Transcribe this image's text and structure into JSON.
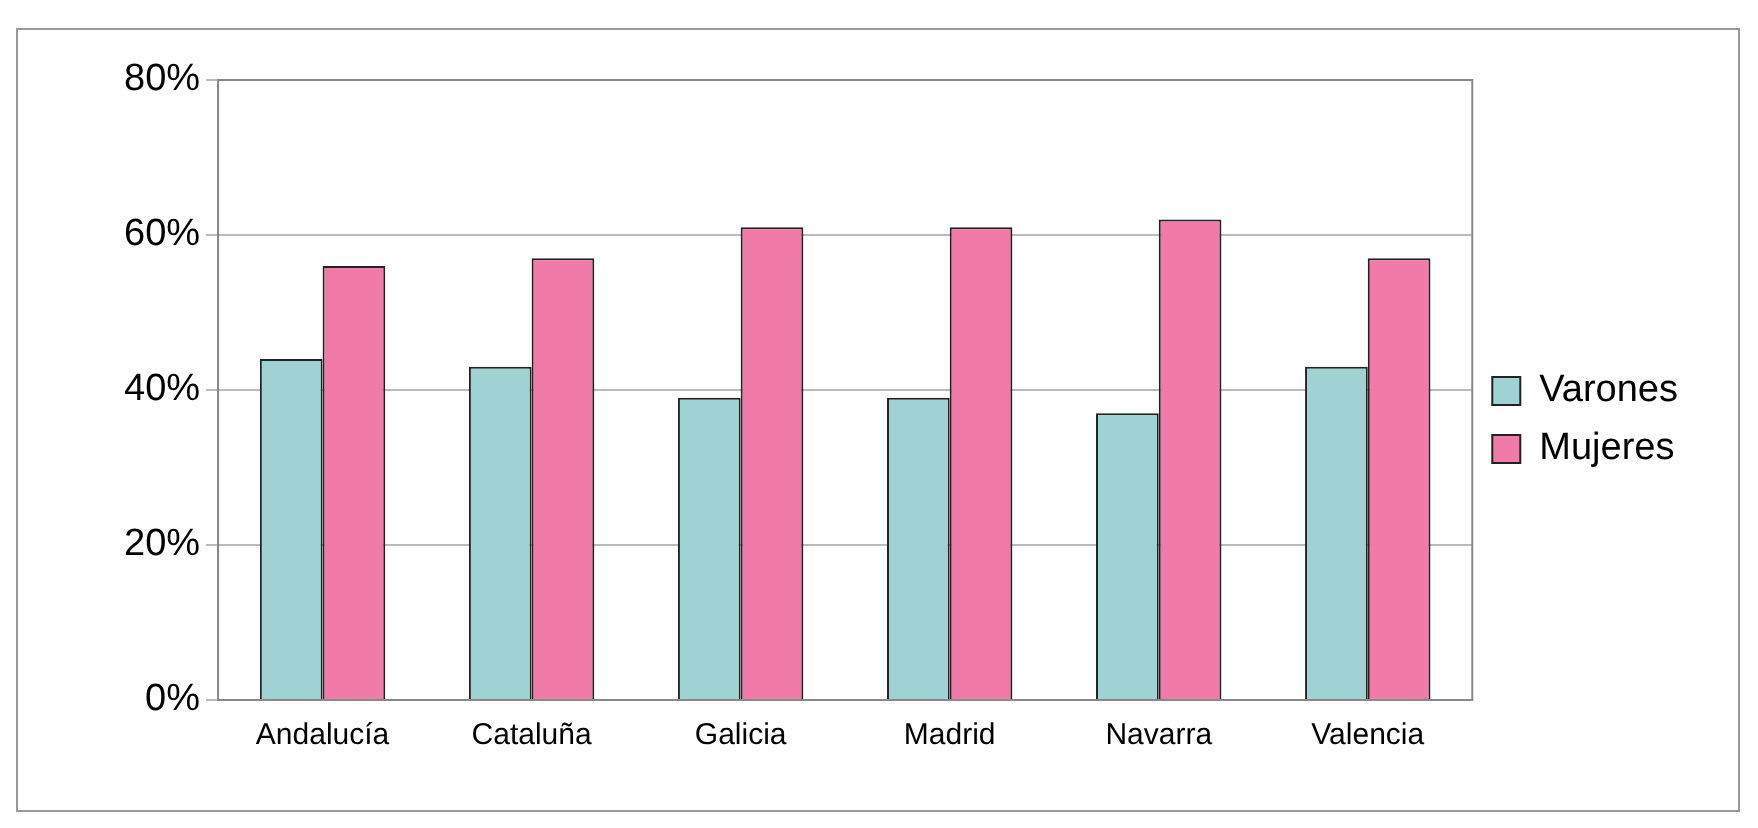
{
  "chart_data": {
    "type": "bar",
    "categories": [
      "Andalucía",
      "Cataluña",
      "Galicia",
      "Madrid",
      "Navarra",
      "Valencia"
    ],
    "series": [
      {
        "name": "Varones",
        "color": "#9fd3d3",
        "values": [
          44,
          43,
          39,
          39,
          37,
          43
        ]
      },
      {
        "name": "Mujeres",
        "color": "#f07aa8",
        "values": [
          56,
          57,
          61,
          61,
          62,
          57
        ]
      }
    ],
    "ylim": [
      0,
      80
    ],
    "yticks": [
      {
        "value": 0,
        "label": "0%"
      },
      {
        "value": 20,
        "label": "20%"
      },
      {
        "value": 40,
        "label": "40%"
      },
      {
        "value": 60,
        "label": "60%"
      },
      {
        "value": 80,
        "label": "80%"
      }
    ],
    "grid": "y",
    "legend": "right"
  }
}
